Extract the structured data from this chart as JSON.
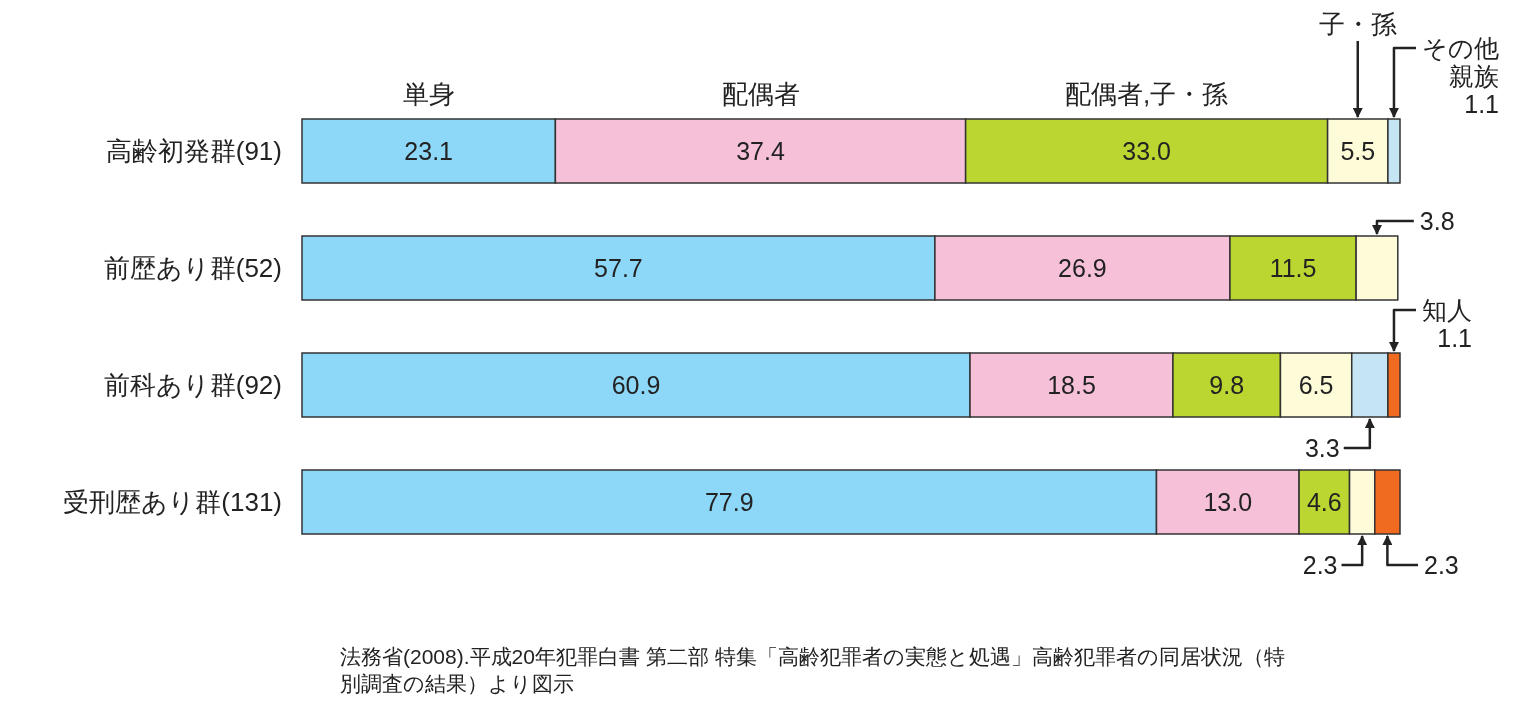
{
  "chart_data": {
    "type": "bar",
    "orientation": "horizontal",
    "stacked": true,
    "categories": [
      "高齢初発群(91)",
      "前歴あり群(52)",
      "前科あり群(92)",
      "受刑歴あり群(131)"
    ],
    "series": [
      {
        "name": "単身",
        "color": "#8dd8f8",
        "values": [
          23.1,
          57.7,
          60.9,
          77.9
        ],
        "value_labels": [
          "23.1",
          "57.7",
          "60.9",
          "77.9"
        ]
      },
      {
        "name": "配偶者",
        "color": "#f6c0d9",
        "values": [
          37.4,
          26.9,
          18.5,
          13.0
        ],
        "value_labels": [
          "37.4",
          "26.9",
          "18.5",
          "13.0"
        ]
      },
      {
        "name": "配偶者,子・孫",
        "color": "#bcd631",
        "values": [
          33.0,
          11.5,
          9.8,
          4.6
        ],
        "value_labels": [
          "33.0",
          "11.5",
          "9.8",
          "4.6"
        ]
      },
      {
        "name": "子・孫",
        "color": "#fefbd9",
        "values": [
          5.5,
          3.8,
          6.5,
          2.3
        ],
        "value_labels": [
          "5.5",
          "3.8",
          "6.5",
          "2.3"
        ]
      },
      {
        "name": "その他親族",
        "color": "#c5e5f5",
        "values": [
          1.1,
          null,
          3.3,
          null
        ],
        "value_labels": [
          "1.1",
          null,
          "3.3",
          null
        ]
      },
      {
        "name": "知人",
        "color": "#f06a1f",
        "values": [
          null,
          null,
          1.1,
          2.3
        ],
        "value_labels": [
          null,
          null,
          "1.1",
          "2.3"
        ]
      }
    ],
    "annotations": [
      "法務省(2008).平成20年犯罪白書 第二部 特集「高齢犯罪者の実態と処遇」高齢犯罪者の同居状況（特別調査の結果）より図示"
    ]
  }
}
